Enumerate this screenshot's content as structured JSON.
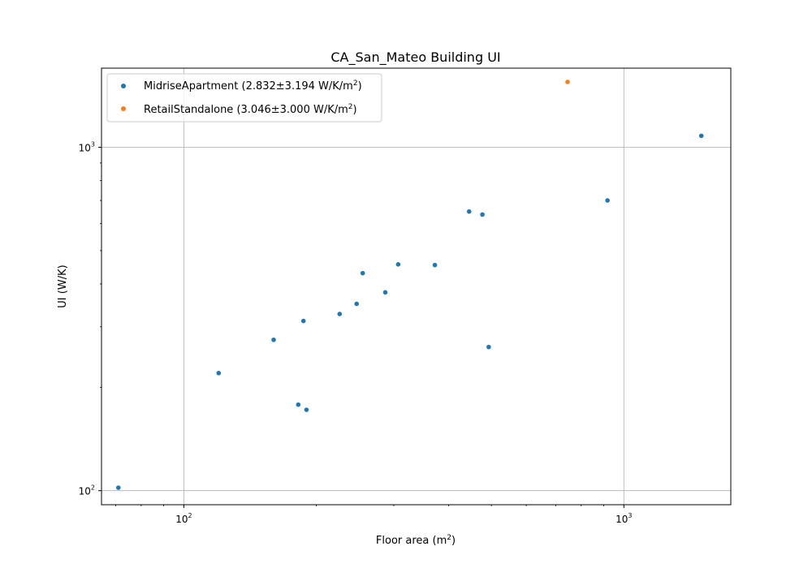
{
  "chart_data": {
    "type": "scatter",
    "title": "CA_San_Mateo Building UI",
    "xlabel": "Floor area (m",
    "xlabel_sup": "2",
    "xlabel_end": ")",
    "ylabel": "UI (W/K)",
    "xscale": "log",
    "yscale": "log",
    "xlim": [
      65,
      1750
    ],
    "ylim": [
      91,
      1700
    ],
    "grid": true,
    "legend_position": "upper left",
    "xticks": [
      {
        "value": 100,
        "base": "10",
        "exp": "2"
      },
      {
        "value": 1000,
        "base": "10",
        "exp": "3"
      }
    ],
    "yticks": [
      {
        "value": 100,
        "base": "10",
        "exp": "2"
      },
      {
        "value": 1000,
        "base": "10",
        "exp": "3"
      }
    ],
    "series": [
      {
        "name": "MidriseApartment (2.832±3.194 W/K/m",
        "name_sup": "2",
        "name_end": ")",
        "color": "#1f77b4",
        "points": [
          {
            "x": 71,
            "y": 102
          },
          {
            "x": 120,
            "y": 220
          },
          {
            "x": 160,
            "y": 275
          },
          {
            "x": 182,
            "y": 178
          },
          {
            "x": 187,
            "y": 312
          },
          {
            "x": 190,
            "y": 172
          },
          {
            "x": 226,
            "y": 327
          },
          {
            "x": 247,
            "y": 350
          },
          {
            "x": 255,
            "y": 430
          },
          {
            "x": 287,
            "y": 378
          },
          {
            "x": 307,
            "y": 456
          },
          {
            "x": 372,
            "y": 454
          },
          {
            "x": 445,
            "y": 650
          },
          {
            "x": 477,
            "y": 637
          },
          {
            "x": 493,
            "y": 262
          },
          {
            "x": 918,
            "y": 700
          },
          {
            "x": 1500,
            "y": 1080
          }
        ]
      },
      {
        "name": "RetailStandalone (3.046±3.000 W/K/m",
        "name_sup": "2",
        "name_end": ")",
        "color": "#ff7f0e",
        "points": [
          {
            "x": 745,
            "y": 1550
          }
        ]
      }
    ]
  }
}
